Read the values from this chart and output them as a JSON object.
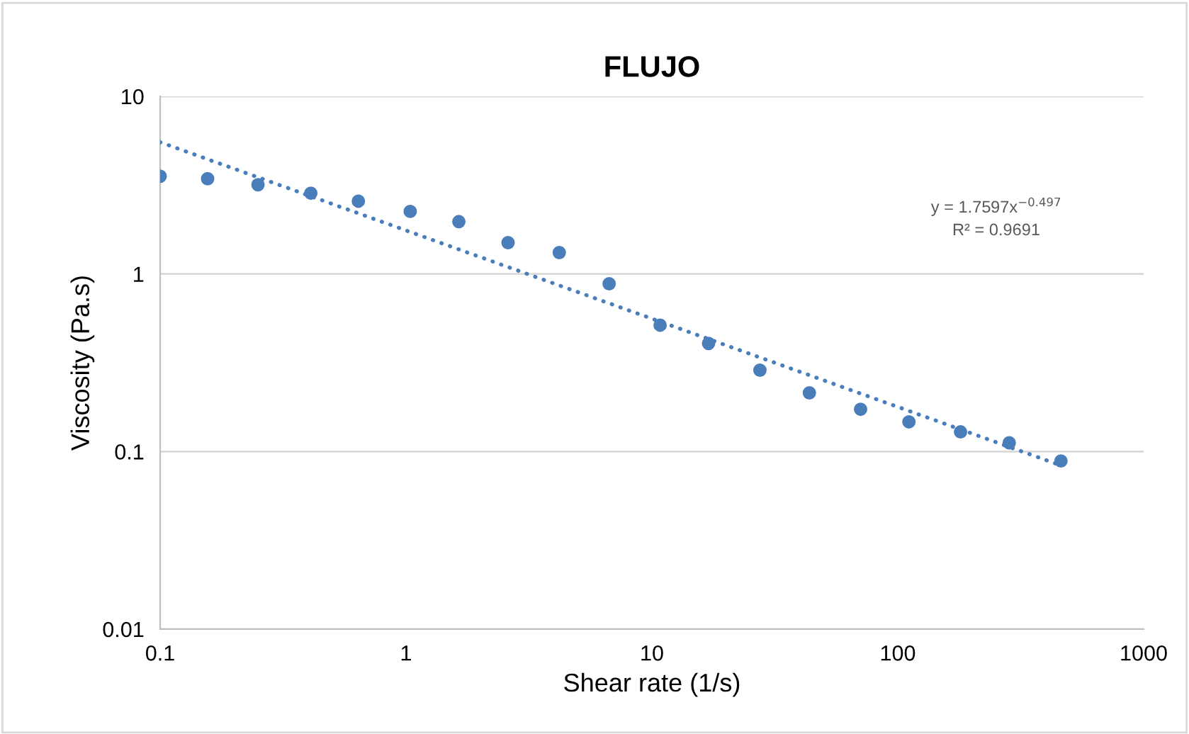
{
  "chart_data": {
    "type": "scatter",
    "title": "FLUJO",
    "xlabel": "Shear rate (1/s)",
    "ylabel": "Viscosity (Pa.s)",
    "log": "xy",
    "xlim": [
      0.1,
      1000
    ],
    "xticks": [
      0.1,
      1,
      10,
      100,
      1000
    ],
    "ylim": [
      0.01,
      10
    ],
    "yticks": [
      0.01,
      0.1,
      1,
      10
    ],
    "grid": "y",
    "legend": false,
    "marker": "circle",
    "series": [
      {
        "color": "#4a7ebb",
        "x": [
          0.1,
          0.156,
          0.25,
          0.41,
          0.64,
          1.04,
          1.64,
          2.6,
          4.2,
          6.7,
          10.8,
          17,
          27.5,
          43.7,
          70.6,
          111,
          180,
          284,
          461
        ],
        "values": [
          3.55,
          3.44,
          3.18,
          2.85,
          2.57,
          2.25,
          1.97,
          1.5,
          1.32,
          0.88,
          0.515,
          0.406,
          0.287,
          0.214,
          0.173,
          0.147,
          0.129,
          0.112,
          0.0885
        ]
      },
      {
        "type": "line",
        "color": "#4a7ebb",
        "line_style": "dotted",
        "marker": "none",
        "x": [
          0.1,
          461
        ],
        "values": [
          5.52,
          0.0835
        ]
      }
    ],
    "annotations": [
      "y = 1.7597x$^{−0.497}$",
      "R² = 0.9691"
    ]
  }
}
